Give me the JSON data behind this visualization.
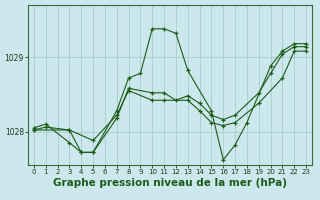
{
  "background_color": "#cce8ec",
  "grid_color": "#aacccc",
  "line_color": "#1a5c1a",
  "marker_color": "#1a5c1a",
  "xlabel": "Graphe pression niveau de la mer (hPa)",
  "xlabel_fontsize": 7.5,
  "xticks": [
    0,
    1,
    2,
    3,
    4,
    5,
    6,
    7,
    8,
    9,
    10,
    11,
    12,
    13,
    14,
    15,
    16,
    17,
    18,
    19,
    20,
    21,
    22,
    23
  ],
  "yticks": [
    1028,
    1029
  ],
  "ylim": [
    1027.55,
    1029.7
  ],
  "xlim": [
    -0.5,
    23.5
  ],
  "series": [
    {
      "x": [
        0,
        1,
        3,
        4,
        5,
        7,
        8,
        9,
        10,
        11,
        12,
        13,
        15,
        16,
        17,
        18,
        20,
        21,
        22,
        23
      ],
      "y": [
        1028.05,
        1028.1,
        1027.85,
        1027.72,
        1027.72,
        1028.28,
        1028.72,
        1028.78,
        1029.38,
        1029.38,
        1029.32,
        1028.82,
        1028.28,
        1027.62,
        1027.82,
        1028.12,
        1028.88,
        1029.08,
        1029.18,
        1029.18
      ]
    },
    {
      "x": [
        0,
        1,
        3,
        4,
        5,
        7,
        8,
        10,
        11,
        12,
        13,
        14,
        15,
        16,
        17,
        19,
        20,
        21,
        22,
        23
      ],
      "y": [
        1028.02,
        1028.06,
        1028.02,
        1027.72,
        1027.72,
        1028.18,
        1028.58,
        1028.52,
        1028.52,
        1028.42,
        1028.48,
        1028.38,
        1028.22,
        1028.16,
        1028.22,
        1028.52,
        1028.78,
        1029.04,
        1029.14,
        1029.14
      ]
    },
    {
      "x": [
        0,
        3,
        5,
        7,
        8,
        10,
        11,
        13,
        14,
        15,
        16,
        17,
        19,
        21,
        22,
        23
      ],
      "y": [
        1028.02,
        1028.02,
        1027.88,
        1028.22,
        1028.55,
        1028.42,
        1028.42,
        1028.42,
        1028.28,
        1028.12,
        1028.08,
        1028.12,
        1028.38,
        1028.72,
        1029.08,
        1029.08
      ]
    }
  ]
}
